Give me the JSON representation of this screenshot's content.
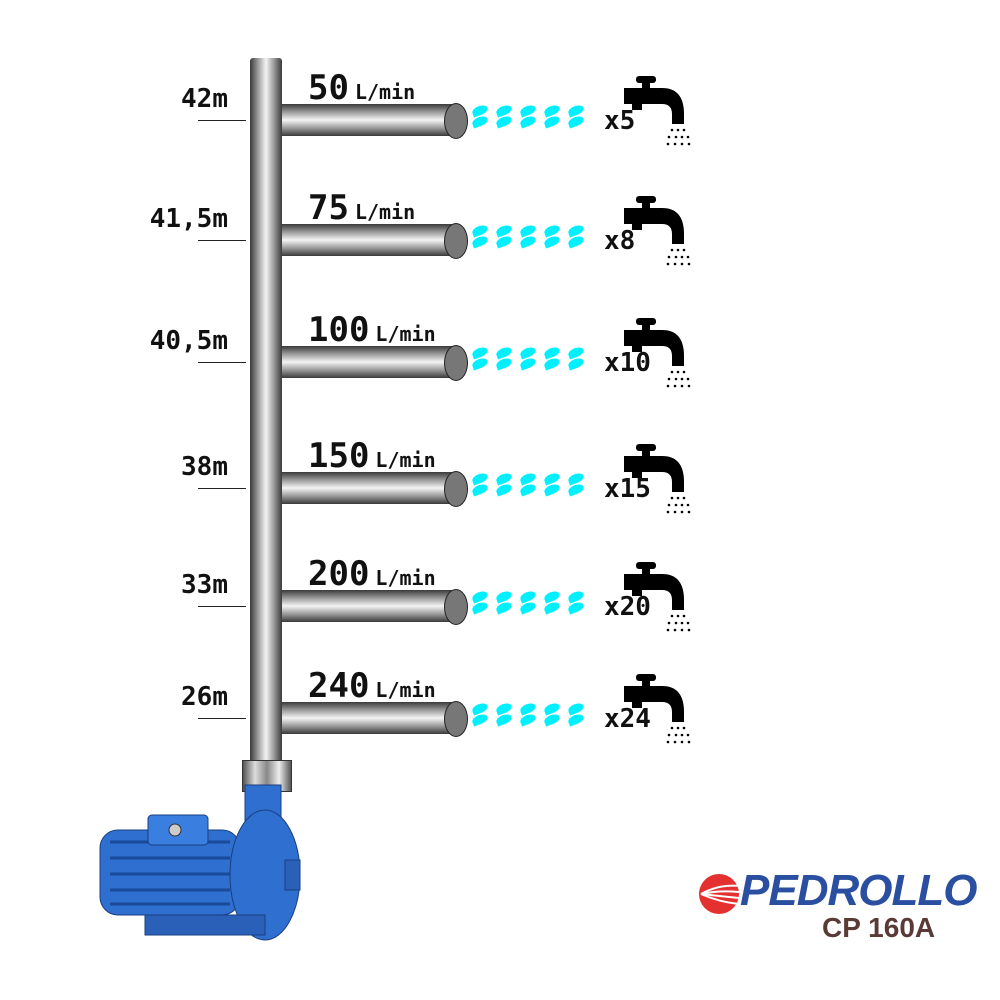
{
  "rows": [
    {
      "height": "42m",
      "flow": "50",
      "unit": "L/min",
      "taps": "x5"
    },
    {
      "height": "41,5m",
      "flow": "75",
      "unit": "L/min",
      "taps": "x8"
    },
    {
      "height": "40,5m",
      "flow": "100",
      "unit": "L/min",
      "taps": "x10"
    },
    {
      "height": "38m",
      "flow": "150",
      "unit": "L/min",
      "taps": "x15"
    },
    {
      "height": "33m",
      "flow": "200",
      "unit": "L/min",
      "taps": "x20"
    },
    {
      "height": "26m",
      "flow": "240",
      "unit": "L/min",
      "taps": "x24"
    }
  ],
  "brand": {
    "logo": "PEDROLLO",
    "model": "CP 160A"
  },
  "colors": {
    "water": "#00f0ff",
    "pump": "#2f6fd0",
    "brand_blue": "#2a4fa0",
    "brand_red": "#e53030"
  }
}
